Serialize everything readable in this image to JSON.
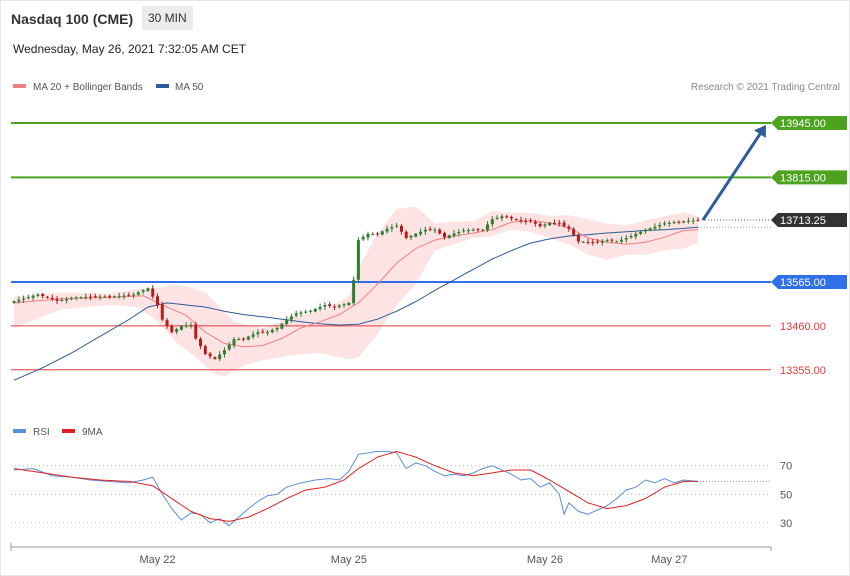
{
  "header": {
    "title": "Nasdaq 100 (CME)",
    "timeframe": "30 MIN",
    "datetime": "Wednesday, May 26, 2021 7:32:05 AM CET"
  },
  "legend": {
    "ma20": {
      "label": "MA 20 + Bollinger Bands",
      "color": "#f08080"
    },
    "ma50": {
      "label": "MA 50",
      "color": "#2e5c99"
    },
    "credit": "Research © 2021 Trading Central"
  },
  "chart_data": {
    "type": "candlestick",
    "price_range": [
      13290,
      14000
    ],
    "levels": [
      {
        "label": "13945.00",
        "value": 13945,
        "color": "#4ca31f",
        "kind": "resistance"
      },
      {
        "label": "13815.00",
        "value": 13815,
        "color": "#4ca31f",
        "kind": "resistance"
      },
      {
        "label": "13565.00",
        "value": 13565,
        "color": "#2f6fe8",
        "kind": "pivot"
      },
      {
        "label": "13460.00",
        "value": 13460,
        "color": "#e23c3c",
        "kind": "support"
      },
      {
        "label": "13355.00",
        "value": 13355,
        "color": "#e23c3c",
        "kind": "support"
      }
    ],
    "last_price": {
      "label": "13713.25",
      "value": 13713.25
    },
    "target_arrow": {
      "from": 13713.25,
      "to": 13945
    },
    "price_anchors": [
      [
        0,
        13519
      ],
      [
        5,
        13535
      ],
      [
        9,
        13520
      ],
      [
        13,
        13528
      ],
      [
        17,
        13530
      ],
      [
        22,
        13531
      ],
      [
        25,
        13535
      ],
      [
        28,
        13550
      ],
      [
        30,
        13510
      ],
      [
        31,
        13475
      ],
      [
        33,
        13445
      ],
      [
        35,
        13460
      ],
      [
        37,
        13462
      ],
      [
        38,
        13430
      ],
      [
        40,
        13393
      ],
      [
        42,
        13381
      ],
      [
        44,
        13402
      ],
      [
        46,
        13428
      ],
      [
        48,
        13429
      ],
      [
        51,
        13445
      ],
      [
        53,
        13445
      ],
      [
        55,
        13455
      ],
      [
        57,
        13475
      ],
      [
        59,
        13490
      ],
      [
        62,
        13496
      ],
      [
        65,
        13510
      ],
      [
        67,
        13505
      ],
      [
        70,
        13515
      ],
      [
        71,
        13570
      ],
      [
        72,
        13665
      ],
      [
        74,
        13680
      ],
      [
        76,
        13680
      ],
      [
        78,
        13692
      ],
      [
        80,
        13700
      ],
      [
        82,
        13670
      ],
      [
        84,
        13680
      ],
      [
        86,
        13690
      ],
      [
        88,
        13690
      ],
      [
        90,
        13672
      ],
      [
        92,
        13681
      ],
      [
        94,
        13688
      ],
      [
        96,
        13690
      ],
      [
        98,
        13690
      ],
      [
        100,
        13715
      ],
      [
        102,
        13722
      ],
      [
        104,
        13717
      ],
      [
        106,
        13710
      ],
      [
        108,
        13710
      ],
      [
        110,
        13698
      ],
      [
        112,
        13707
      ],
      [
        114,
        13705
      ],
      [
        116,
        13692
      ],
      [
        118,
        13662
      ],
      [
        120,
        13660
      ],
      [
        122,
        13660
      ],
      [
        124,
        13665
      ],
      [
        126,
        13662
      ],
      [
        128,
        13670
      ],
      [
        130,
        13680
      ],
      [
        132,
        13690
      ],
      [
        134,
        13697
      ],
      [
        136,
        13705
      ],
      [
        138,
        13708
      ],
      [
        140,
        13710
      ],
      [
        142,
        13712
      ],
      [
        143,
        13713.25
      ]
    ],
    "ma20_anchors": [
      [
        0,
        13515
      ],
      [
        10,
        13525
      ],
      [
        20,
        13528
      ],
      [
        27,
        13532
      ],
      [
        32,
        13505
      ],
      [
        36,
        13485
      ],
      [
        40,
        13445
      ],
      [
        44,
        13418
      ],
      [
        48,
        13410
      ],
      [
        52,
        13413
      ],
      [
        56,
        13430
      ],
      [
        60,
        13455
      ],
      [
        64,
        13470
      ],
      [
        68,
        13487
      ],
      [
        72,
        13515
      ],
      [
        76,
        13560
      ],
      [
        80,
        13610
      ],
      [
        84,
        13645
      ],
      [
        88,
        13665
      ],
      [
        92,
        13675
      ],
      [
        96,
        13682
      ],
      [
        100,
        13690
      ],
      [
        104,
        13708
      ],
      [
        108,
        13712
      ],
      [
        112,
        13706
      ],
      [
        116,
        13695
      ],
      [
        120,
        13670
      ],
      [
        124,
        13660
      ],
      [
        128,
        13655
      ],
      [
        132,
        13660
      ],
      [
        136,
        13672
      ],
      [
        140,
        13688
      ],
      [
        143,
        13690
      ]
    ],
    "bb_upper_anchors": [
      [
        0,
        13530
      ],
      [
        10,
        13540
      ],
      [
        20,
        13538
      ],
      [
        26,
        13548
      ],
      [
        30,
        13550
      ],
      [
        33,
        13560
      ],
      [
        36,
        13555
      ],
      [
        40,
        13540
      ],
      [
        43,
        13505
      ],
      [
        46,
        13470
      ],
      [
        52,
        13455
      ],
      [
        58,
        13480
      ],
      [
        64,
        13495
      ],
      [
        70,
        13530
      ],
      [
        72,
        13600
      ],
      [
        76,
        13680
      ],
      [
        80,
        13740
      ],
      [
        84,
        13745
      ],
      [
        88,
        13705
      ],
      [
        92,
        13710
      ],
      [
        96,
        13710
      ],
      [
        100,
        13735
      ],
      [
        104,
        13730
      ],
      [
        108,
        13730
      ],
      [
        112,
        13723
      ],
      [
        116,
        13725
      ],
      [
        120,
        13715
      ],
      [
        124,
        13705
      ],
      [
        128,
        13700
      ],
      [
        132,
        13712
      ],
      [
        136,
        13722
      ],
      [
        140,
        13732
      ],
      [
        143,
        13722
      ]
    ],
    "bb_lower_anchors": [
      [
        0,
        13455
      ],
      [
        10,
        13500
      ],
      [
        20,
        13510
      ],
      [
        26,
        13505
      ],
      [
        30,
        13470
      ],
      [
        34,
        13420
      ],
      [
        38,
        13385
      ],
      [
        42,
        13345
      ],
      [
        44,
        13340
      ],
      [
        48,
        13365
      ],
      [
        52,
        13378
      ],
      [
        58,
        13390
      ],
      [
        64,
        13395
      ],
      [
        70,
        13380
      ],
      [
        72,
        13385
      ],
      [
        76,
        13440
      ],
      [
        80,
        13510
      ],
      [
        84,
        13560
      ],
      [
        88,
        13640
      ],
      [
        92,
        13655
      ],
      [
        96,
        13670
      ],
      [
        100,
        13675
      ],
      [
        104,
        13690
      ],
      [
        108,
        13685
      ],
      [
        112,
        13670
      ],
      [
        116,
        13655
      ],
      [
        120,
        13630
      ],
      [
        124,
        13618
      ],
      [
        128,
        13630
      ],
      [
        132,
        13630
      ],
      [
        136,
        13640
      ],
      [
        140,
        13645
      ],
      [
        143,
        13658
      ]
    ],
    "ma50_anchors": [
      [
        0,
        13330
      ],
      [
        6,
        13360
      ],
      [
        12,
        13395
      ],
      [
        18,
        13435
      ],
      [
        24,
        13475
      ],
      [
        28,
        13505
      ],
      [
        32,
        13515
      ],
      [
        36,
        13510
      ],
      [
        40,
        13505
      ],
      [
        44,
        13495
      ],
      [
        48,
        13487
      ],
      [
        52,
        13482
      ],
      [
        56,
        13476
      ],
      [
        60,
        13470
      ],
      [
        64,
        13465
      ],
      [
        68,
        13462
      ],
      [
        72,
        13464
      ],
      [
        76,
        13476
      ],
      [
        80,
        13495
      ],
      [
        84,
        13518
      ],
      [
        88,
        13545
      ],
      [
        92,
        13570
      ],
      [
        96,
        13595
      ],
      [
        100,
        13620
      ],
      [
        104,
        13640
      ],
      [
        108,
        13658
      ],
      [
        112,
        13668
      ],
      [
        116,
        13675
      ],
      [
        120,
        13678
      ],
      [
        124,
        13682
      ],
      [
        128,
        13685
      ],
      [
        132,
        13688
      ],
      [
        136,
        13690
      ],
      [
        140,
        13693
      ],
      [
        143,
        13696
      ]
    ],
    "rsi_range": [
      18,
      88
    ],
    "rsi_levels": [
      70,
      50,
      30
    ],
    "rsi_anchors": [
      [
        0,
        67
      ],
      [
        4,
        68
      ],
      [
        8,
        63
      ],
      [
        12,
        62
      ],
      [
        16,
        60
      ],
      [
        20,
        59
      ],
      [
        24,
        58
      ],
      [
        27,
        60
      ],
      [
        29,
        62
      ],
      [
        31,
        50
      ],
      [
        33,
        40
      ],
      [
        35,
        32
      ],
      [
        37,
        37
      ],
      [
        39,
        36
      ],
      [
        41,
        30
      ],
      [
        43,
        33
      ],
      [
        45,
        28
      ],
      [
        47,
        34
      ],
      [
        49,
        40
      ],
      [
        51,
        45
      ],
      [
        53,
        49
      ],
      [
        55,
        50
      ],
      [
        57,
        55
      ],
      [
        60,
        58
      ],
      [
        63,
        60
      ],
      [
        66,
        61
      ],
      [
        68,
        60
      ],
      [
        70,
        66
      ],
      [
        71,
        72
      ],
      [
        72,
        78
      ],
      [
        74,
        79
      ],
      [
        76,
        80
      ],
      [
        78,
        80
      ],
      [
        80,
        79
      ],
      [
        82,
        68
      ],
      [
        84,
        72
      ],
      [
        86,
        70
      ],
      [
        88,
        66
      ],
      [
        90,
        63
      ],
      [
        92,
        64
      ],
      [
        94,
        63
      ],
      [
        96,
        65
      ],
      [
        98,
        68
      ],
      [
        100,
        70
      ],
      [
        102,
        67
      ],
      [
        104,
        64
      ],
      [
        106,
        60
      ],
      [
        108,
        61
      ],
      [
        110,
        55
      ],
      [
        112,
        58
      ],
      [
        114,
        50
      ],
      [
        115,
        36
      ],
      [
        116,
        44
      ],
      [
        118,
        38
      ],
      [
        120,
        36
      ],
      [
        122,
        39
      ],
      [
        124,
        42
      ],
      [
        126,
        47
      ],
      [
        128,
        53
      ],
      [
        130,
        55
      ],
      [
        132,
        60
      ],
      [
        134,
        58
      ],
      [
        136,
        61
      ],
      [
        138,
        58
      ],
      [
        140,
        60
      ],
      [
        143,
        59
      ]
    ],
    "rsi_ma_anchors": [
      [
        0,
        68
      ],
      [
        6,
        65
      ],
      [
        12,
        62
      ],
      [
        18,
        60
      ],
      [
        24,
        59
      ],
      [
        29,
        56
      ],
      [
        33,
        47
      ],
      [
        37,
        38
      ],
      [
        41,
        33
      ],
      [
        45,
        31
      ],
      [
        49,
        34
      ],
      [
        53,
        40
      ],
      [
        57,
        47
      ],
      [
        61,
        53
      ],
      [
        65,
        55
      ],
      [
        69,
        60
      ],
      [
        72,
        68
      ],
      [
        76,
        76
      ],
      [
        80,
        80
      ],
      [
        84,
        76
      ],
      [
        88,
        70
      ],
      [
        92,
        65
      ],
      [
        96,
        63
      ],
      [
        100,
        65
      ],
      [
        104,
        67
      ],
      [
        108,
        67
      ],
      [
        112,
        60
      ],
      [
        116,
        52
      ],
      [
        120,
        44
      ],
      [
        124,
        40
      ],
      [
        128,
        42
      ],
      [
        132,
        47
      ],
      [
        136,
        55
      ],
      [
        140,
        59
      ],
      [
        143,
        59
      ]
    ],
    "x_ticks": [
      {
        "label": "May 22",
        "index": 30
      },
      {
        "label": "May 25",
        "index": 70
      },
      {
        "label": "May 26",
        "index": 111
      },
      {
        "label": "May 27",
        "index": 137
      }
    ],
    "rsi_legend": [
      {
        "label": "RSI",
        "color": "#5b8ed8"
      },
      {
        "label": "9MA",
        "color": "#e02020"
      }
    ],
    "colors": {
      "up": "#2e7d32",
      "down": "#b71c1c",
      "band": "#fde3e3",
      "ma20": "#f08080",
      "ma50": "#2e5c99"
    }
  }
}
